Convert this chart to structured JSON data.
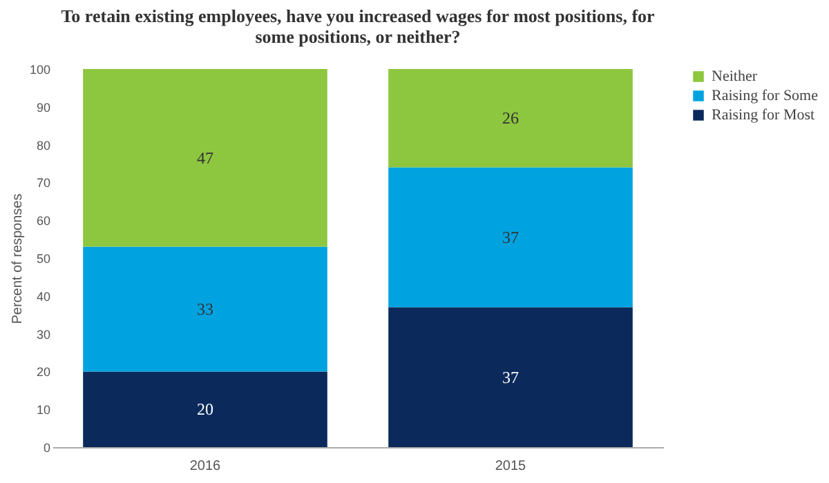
{
  "chart_data": {
    "type": "bar",
    "title": "To retain existing employees, have you increased wages for most positions, for some positions, or neither?",
    "ylabel": "Percent of responses",
    "categories": [
      "2016",
      "2015"
    ],
    "stacked": true,
    "data_labels": true,
    "legend": "right",
    "grid": false,
    "ylim": [
      0,
      100
    ],
    "yticks": [
      0,
      10,
      20,
      30,
      40,
      50,
      60,
      70,
      80,
      90,
      100
    ],
    "series": [
      {
        "name": "Raising for Most",
        "color": "#0b2a5b",
        "values": [
          20,
          37
        ]
      },
      {
        "name": "Raising for Some",
        "color": "#00a3e0",
        "values": [
          33,
          37
        ]
      },
      {
        "name": "Neither",
        "color": "#8dc63f",
        "values": [
          47,
          26
        ]
      }
    ]
  }
}
